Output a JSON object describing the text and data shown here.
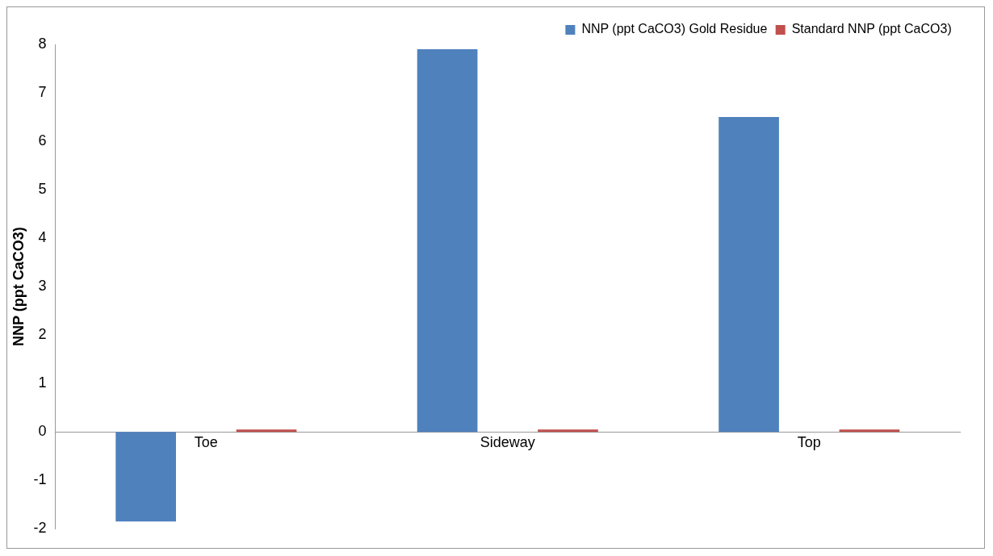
{
  "chart_data": {
    "type": "bar",
    "ylabel": "NNP (ppt CaCO3)",
    "categories": [
      "Toe",
      "Sideway",
      "Top"
    ],
    "series": [
      {
        "name": "NNP (ppt CaCO3) Gold Residue",
        "color": "#4f81bd",
        "values": [
          -1.85,
          7.9,
          6.5
        ]
      },
      {
        "name": "Standard NNP (ppt CaCO3)",
        "color": "#c0504d",
        "values": [
          0.05,
          0.05,
          0.05
        ]
      }
    ],
    "ylim": [
      -2,
      8
    ],
    "yticks": [
      -2,
      -1,
      0,
      1,
      2,
      3,
      4,
      5,
      6,
      7,
      8
    ],
    "grid": false,
    "legend": "top right"
  }
}
